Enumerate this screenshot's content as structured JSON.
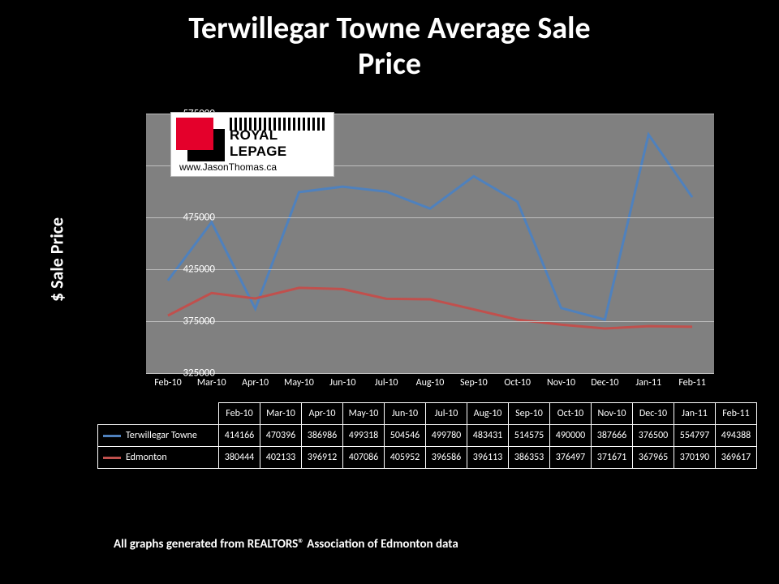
{
  "title_line1": "Terwillegar Towne Average Sale",
  "title_line2": "Price",
  "y_axis_label": "$ Sale Price",
  "logo": {
    "brand_text": "ROYAL LEPAGE",
    "url_text": "www.JasonThomas.ca",
    "red": "#e4002b"
  },
  "footer_text": "All graphs generated from REALTORS® Association of Edmonton data",
  "chart": {
    "type": "line",
    "background_color": "#808080",
    "grid_color": "#bfbfbf",
    "y_min": 325000,
    "y_max": 575000,
    "y_tick_step": 50000,
    "y_ticks": [
      325000,
      375000,
      425000,
      475000,
      525000,
      575000
    ],
    "categories": [
      "Feb-10",
      "Mar-10",
      "Apr-10",
      "May-10",
      "Jun-10",
      "Jul-10",
      "Aug-10",
      "Sep-10",
      "Oct-10",
      "Nov-10",
      "Dec-10",
      "Jan-11",
      "Feb-11"
    ],
    "line_width": 3,
    "marker_size": 0,
    "series": [
      {
        "name": "Terwillegar Towne",
        "color": "#4f81bd",
        "values": [
          414166,
          470396,
          386986,
          499318,
          504546,
          499780,
          483431,
          514575,
          490000,
          387666,
          376500,
          554797,
          494388
        ]
      },
      {
        "name": "Edmonton",
        "color": "#c0504d",
        "values": [
          380444,
          402133,
          396912,
          407086,
          405952,
          396586,
          396113,
          386353,
          376497,
          371671,
          367965,
          370190,
          369617
        ]
      }
    ]
  }
}
